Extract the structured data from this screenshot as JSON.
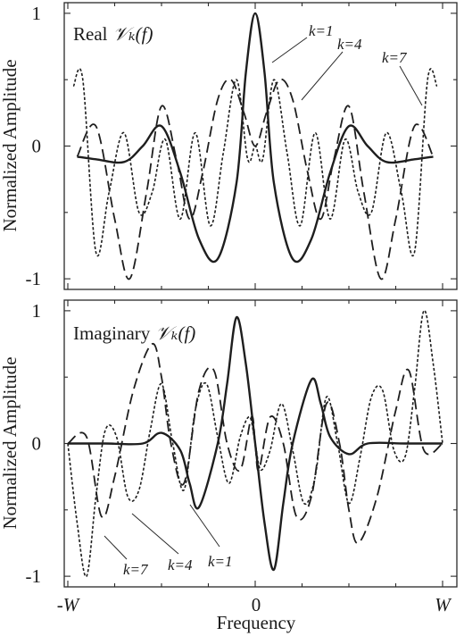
{
  "figure": {
    "xlabel": "Frequency",
    "xtick_labels": [
      {
        "text": "-W",
        "italic": true
      },
      {
        "text": "0",
        "italic": false
      },
      {
        "text": "W",
        "italic": true
      }
    ]
  },
  "chart_data": [
    {
      "type": "line",
      "panel": "top",
      "title_prefix": "Real",
      "title_math": "𝒱ₖ(f)",
      "ylabel": "Normalized Amplitude",
      "ylim": [
        -1.08,
        1.08
      ],
      "xlim": [
        -1,
        1
      ],
      "yticks": [
        -1,
        0,
        1
      ],
      "ytick_labels": [
        "-1",
        "0",
        "1"
      ],
      "x_units": "fraction of W",
      "legend": "none",
      "grid": false,
      "series": [
        {
          "label": "k=1",
          "style": "solid",
          "x": [
            -0.95,
            -0.85,
            -0.7,
            -0.6,
            -0.5,
            -0.4,
            -0.3,
            -0.2,
            -0.1,
            -0.05,
            0,
            0.05,
            0.1,
            0.2,
            0.3,
            0.4,
            0.5,
            0.6,
            0.7,
            0.85,
            0.95
          ],
          "y": [
            -0.08,
            -0.1,
            -0.12,
            0.0,
            0.15,
            -0.2,
            -0.7,
            -0.85,
            -0.28,
            0.55,
            1.0,
            0.55,
            -0.28,
            -0.85,
            -0.7,
            -0.2,
            0.15,
            0.0,
            -0.12,
            -0.1,
            -0.08
          ]
        },
        {
          "label": "k=4",
          "style": "dashed",
          "x": [
            -0.95,
            -0.85,
            -0.75,
            -0.67,
            -0.58,
            -0.5,
            -0.42,
            -0.35,
            -0.28,
            -0.2,
            -0.13,
            -0.06,
            0,
            0.06,
            0.13,
            0.2,
            0.28,
            0.35,
            0.42,
            0.5,
            0.58,
            0.67,
            0.75,
            0.85,
            0.95
          ],
          "y": [
            -0.08,
            0.15,
            -0.55,
            -1.0,
            -0.35,
            0.3,
            -0.1,
            -0.55,
            -0.2,
            0.35,
            0.5,
            0.25,
            0.0,
            0.25,
            0.5,
            0.35,
            -0.2,
            -0.55,
            -0.1,
            0.3,
            -0.35,
            -1.0,
            -0.55,
            0.15,
            -0.08
          ]
        },
        {
          "label": "k=7",
          "style": "dotted",
          "x": [
            -0.97,
            -0.92,
            -0.85,
            -0.78,
            -0.7,
            -0.62,
            -0.55,
            -0.48,
            -0.4,
            -0.32,
            -0.24,
            -0.17,
            -0.1,
            -0.04,
            0,
            0.04,
            0.1,
            0.17,
            0.24,
            0.32,
            0.4,
            0.48,
            0.55,
            0.62,
            0.7,
            0.78,
            0.85,
            0.92,
            0.97
          ],
          "y": [
            0.45,
            0.5,
            -0.8,
            -0.35,
            0.1,
            -0.5,
            -0.35,
            0.05,
            -0.55,
            0.1,
            -0.6,
            -0.05,
            0.5,
            -0.1,
            0.0,
            -0.1,
            0.5,
            -0.05,
            -0.6,
            0.1,
            -0.55,
            0.05,
            -0.35,
            -0.5,
            0.1,
            -0.35,
            -0.8,
            0.5,
            0.45
          ]
        }
      ],
      "annotations": [
        {
          "text": "k=1",
          "target": "k=1"
        },
        {
          "text": "k=4",
          "target": "k=4"
        },
        {
          "text": "k=7",
          "target": "k=7"
        }
      ]
    },
    {
      "type": "line",
      "panel": "bottom",
      "title_prefix": "Imaginary",
      "title_math": "𝒱ₖ(f)",
      "ylabel": "Normalized Amplitude",
      "ylim": [
        -1.08,
        1.08
      ],
      "xlim": [
        -1,
        1
      ],
      "yticks": [
        -1,
        0,
        1
      ],
      "ytick_labels": [
        "-1",
        "0",
        "1"
      ],
      "x_units": "fraction of W",
      "legend": "none",
      "grid": false,
      "series": [
        {
          "label": "k=1",
          "style": "solid",
          "x": [
            -1.0,
            -0.8,
            -0.6,
            -0.5,
            -0.4,
            -0.35,
            -0.3,
            -0.2,
            -0.15,
            -0.1,
            -0.05,
            0,
            0.05,
            0.1,
            0.15,
            0.2,
            0.3,
            0.35,
            0.4,
            0.5,
            0.6,
            0.8,
            1.0
          ],
          "y": [
            0.0,
            0.0,
            0.0,
            0.08,
            -0.05,
            -0.3,
            -0.48,
            0.0,
            0.45,
            0.95,
            0.6,
            0.0,
            -0.6,
            -0.95,
            -0.45,
            0.0,
            0.48,
            0.3,
            0.05,
            -0.08,
            0.0,
            0.0,
            0.0
          ]
        },
        {
          "label": "k=4",
          "style": "dashed",
          "x": [
            -1.0,
            -0.9,
            -0.82,
            -0.75,
            -0.65,
            -0.55,
            -0.5,
            -0.45,
            -0.38,
            -0.3,
            -0.22,
            -0.15,
            -0.08,
            -0.02,
            0,
            0.02,
            0.08,
            0.15,
            0.22,
            0.3,
            0.38,
            0.45,
            0.5,
            0.55,
            0.65,
            0.75,
            0.82,
            0.9,
            1.0
          ],
          "y": [
            0.0,
            0.05,
            -0.55,
            -0.25,
            0.4,
            0.75,
            0.5,
            0.0,
            -0.3,
            0.4,
            0.55,
            0.0,
            -0.2,
            0.2,
            0.0,
            -0.2,
            0.2,
            0.0,
            -0.55,
            -0.4,
            0.3,
            0.0,
            -0.5,
            -0.75,
            -0.4,
            0.25,
            0.55,
            -0.05,
            0.0
          ]
        },
        {
          "label": "k=7",
          "style": "dotted",
          "x": [
            -1.0,
            -0.95,
            -0.9,
            -0.85,
            -0.8,
            -0.74,
            -0.68,
            -0.62,
            -0.56,
            -0.5,
            -0.44,
            -0.38,
            -0.32,
            -0.26,
            -0.2,
            -0.14,
            -0.08,
            -0.03,
            0,
            0.03,
            0.08,
            0.14,
            0.2,
            0.26,
            0.32,
            0.38,
            0.44,
            0.5,
            0.56,
            0.62,
            0.68,
            0.74,
            0.8,
            0.85,
            0.9,
            0.95,
            1.0
          ],
          "y": [
            0.0,
            -0.6,
            -1.0,
            -0.4,
            0.1,
            0.05,
            -0.4,
            -0.35,
            0.1,
            0.45,
            0.0,
            -0.35,
            0.25,
            0.45,
            0.05,
            -0.3,
            0.05,
            0.2,
            0.0,
            -0.2,
            -0.05,
            0.3,
            -0.05,
            -0.45,
            -0.25,
            0.35,
            0.0,
            -0.45,
            -0.1,
            0.35,
            0.4,
            -0.05,
            -0.1,
            0.4,
            1.0,
            0.6,
            0.0
          ]
        }
      ],
      "annotations": [
        {
          "text": "k=7",
          "target": "k=7"
        },
        {
          "text": "k=4",
          "target": "k=4"
        },
        {
          "text": "k=1",
          "target": "k=1"
        }
      ]
    }
  ]
}
